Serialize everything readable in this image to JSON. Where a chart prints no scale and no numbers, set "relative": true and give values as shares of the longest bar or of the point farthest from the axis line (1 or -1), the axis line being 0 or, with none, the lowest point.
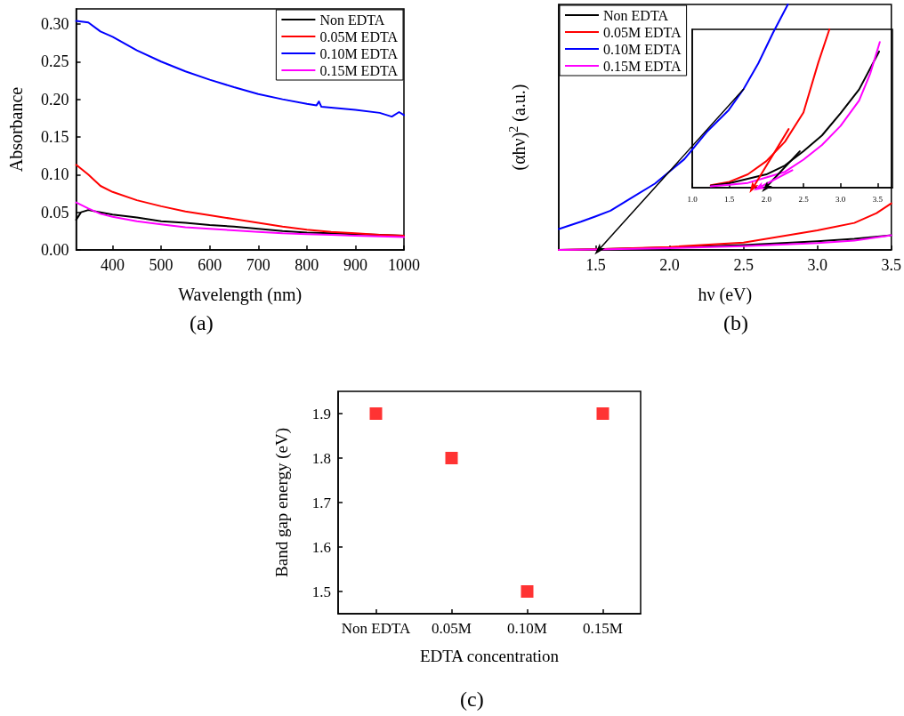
{
  "chart_data": [
    {
      "type": "line",
      "xlabel": "Wavelength (nm)",
      "ylabel": "Absorbance",
      "annotations": [
        "(a)"
      ],
      "legend": "top right",
      "xlim": [
        325,
        1000
      ],
      "xticks": [
        400,
        500,
        600,
        700,
        800,
        900,
        1000
      ],
      "ylim": [
        0,
        0.32
      ],
      "yticks": [
        {
          "value": 0,
          "label": "0.00"
        },
        {
          "value": 0.05,
          "label": "0.05"
        },
        {
          "value": 0.1,
          "label": "0.10"
        },
        {
          "value": 0.15,
          "label": "0.15"
        },
        {
          "value": 0.2,
          "label": "0.20"
        },
        {
          "value": 0.25,
          "label": "0.25"
        },
        {
          "value": 0.3,
          "label": "0.30"
        }
      ],
      "series": [
        {
          "name": "Non EDTA",
          "color": "#000000",
          "x": [
            325,
            335,
            350,
            375,
            400,
            450,
            500,
            550,
            600,
            650,
            700,
            750,
            800,
            850,
            900,
            950,
            1000
          ],
          "values": [
            0.04,
            0.05,
            0.053,
            0.05,
            0.047,
            0.043,
            0.038,
            0.036,
            0.033,
            0.031,
            0.028,
            0.025,
            0.023,
            0.022,
            0.021,
            0.02,
            0.019
          ]
        },
        {
          "name": "0.05M EDTA",
          "color": "#ff0000",
          "x": [
            325,
            350,
            375,
            400,
            450,
            500,
            550,
            600,
            650,
            700,
            750,
            800,
            850,
            900,
            950,
            1000
          ],
          "values": [
            0.113,
            0.1,
            0.085,
            0.077,
            0.066,
            0.058,
            0.051,
            0.046,
            0.041,
            0.036,
            0.031,
            0.027,
            0.024,
            0.022,
            0.02,
            0.019
          ]
        },
        {
          "name": "0.10M EDTA",
          "color": "#0000ff",
          "x": [
            325,
            350,
            375,
            400,
            450,
            500,
            550,
            600,
            650,
            700,
            750,
            800,
            820,
            825,
            830,
            850,
            900,
            950,
            975,
            990,
            1000
          ],
          "values": [
            0.304,
            0.302,
            0.29,
            0.283,
            0.265,
            0.25,
            0.237,
            0.226,
            0.216,
            0.207,
            0.2,
            0.194,
            0.192,
            0.197,
            0.19,
            0.189,
            0.186,
            0.182,
            0.177,
            0.183,
            0.179
          ]
        },
        {
          "name": "0.15M EDTA",
          "color": "#ff00ff",
          "x": [
            325,
            350,
            375,
            400,
            450,
            500,
            550,
            600,
            650,
            700,
            750,
            800,
            850,
            900,
            950,
            1000
          ],
          "values": [
            0.063,
            0.055,
            0.048,
            0.044,
            0.038,
            0.034,
            0.03,
            0.028,
            0.026,
            0.024,
            0.022,
            0.021,
            0.02,
            0.019,
            0.018,
            0.017
          ]
        }
      ]
    },
    {
      "type": "line",
      "xlabel": "hν (eV)",
      "ylabel": "(αhν)$^{2}$ (a.u.)",
      "annotations": [
        "(b)"
      ],
      "legend": "top left",
      "relative": true,
      "xlim": [
        1.25,
        3.5
      ],
      "xticks": [
        {
          "value": 1.5,
          "label": "1.5"
        },
        {
          "value": 2,
          "label": "2.0"
        },
        {
          "value": 2.5,
          "label": "2.5"
        },
        {
          "value": 3,
          "label": "3.0"
        },
        {
          "value": 3.5,
          "label": "3.5"
        }
      ],
      "series": [
        {
          "name": "Non EDTA",
          "color": "#000000",
          "x": [
            1.25,
            1.5,
            2,
            2.5,
            3,
            3.25,
            3.5
          ],
          "values": [
            0,
            0.003,
            0.01,
            0.02,
            0.035,
            0.045,
            0.06
          ]
        },
        {
          "name": "0.05M EDTA",
          "color": "#ff0000",
          "x": [
            1.25,
            1.5,
            2,
            2.5,
            3,
            3.25,
            3.4,
            3.5
          ],
          "values": [
            0,
            0.003,
            0.012,
            0.03,
            0.08,
            0.11,
            0.15,
            0.19
          ]
        },
        {
          "name": "0.10M EDTA",
          "color": "#0000ff",
          "x": [
            1.25,
            1.3,
            1.4,
            1.5,
            1.6,
            1.75,
            1.9,
            2,
            2.1,
            2.25,
            2.4,
            2.5,
            2.6,
            2.7,
            2.8
          ],
          "values": [
            0.085,
            0.095,
            0.115,
            0.137,
            0.16,
            0.215,
            0.27,
            0.32,
            0.37,
            0.48,
            0.57,
            0.655,
            0.76,
            0.885,
            1.0
          ]
        },
        {
          "name": "0.15M EDTA",
          "color": "#ff00ff",
          "x": [
            1.25,
            1.5,
            2,
            2.5,
            3,
            3.25,
            3.5
          ],
          "values": [
            0,
            0.002,
            0.007,
            0.015,
            0.028,
            0.038,
            0.06
          ]
        },
        {
          "color": "#000000",
          "x": [
            1.52,
            2.5
          ],
          "values": [
            0,
            0.655
          ]
        }
      ]
    },
    {
      "type": "line",
      "relative": true,
      "xlim": [
        1.0,
        3.7
      ],
      "xticks": [
        {
          "value": 1,
          "label": "1.0"
        },
        {
          "value": 1.5,
          "label": "1.5"
        },
        {
          "value": 2,
          "label": "2.0"
        },
        {
          "value": 2.5,
          "label": "2.5"
        },
        {
          "value": 3,
          "label": "3.0"
        },
        {
          "value": 3.5,
          "label": "3.5"
        }
      ],
      "series": [
        {
          "color": "#ff0000",
          "x": [
            1.25,
            1.5,
            1.75,
            2,
            2.25,
            2.5,
            2.7,
            2.85
          ],
          "values": [
            0.015,
            0.037,
            0.084,
            0.168,
            0.29,
            0.475,
            0.79,
            1.0
          ]
        },
        {
          "color": "#000000",
          "x": [
            1.25,
            1.5,
            2,
            2.25,
            2.5,
            2.75,
            3,
            3.25,
            3.52
          ],
          "values": [
            0.012,
            0.028,
            0.084,
            0.14,
            0.23,
            0.33,
            0.47,
            0.62,
            0.86
          ]
        },
        {
          "color": "#ff00ff",
          "x": [
            1.25,
            1.5,
            1.75,
            2,
            2.25,
            2.5,
            2.75,
            3,
            3.25,
            3.4,
            3.53
          ],
          "values": [
            0.008,
            0.018,
            0.03,
            0.065,
            0.1,
            0.177,
            0.27,
            0.39,
            0.55,
            0.72,
            0.92
          ]
        },
        {
          "color": "#ff0000",
          "x": [
            1.82,
            2.3
          ],
          "values": [
            0,
            0.37
          ]
        },
        {
          "color": "#000000",
          "x": [
            1.99,
            2.45
          ],
          "values": [
            0,
            0.23
          ]
        },
        {
          "color": "#ff00ff",
          "x": [
            1.9,
            2.35
          ],
          "values": [
            0,
            0.11
          ]
        }
      ]
    },
    {
      "type": "scatter",
      "xlabel": "EDTA concentration",
      "ylabel": "Band gap energy (eV)",
      "annotations": [
        "(c)"
      ],
      "marker": "square",
      "categories": [
        "Non EDTA",
        "0.05M",
        "0.10M",
        "0.15M"
      ],
      "ylim": [
        1.45,
        1.95
      ],
      "yticks": [
        1.5,
        1.6,
        1.7,
        1.8,
        1.9
      ],
      "series": [
        {
          "color": "#ff0000",
          "values": [
            1.9,
            1.8,
            1.5,
            1.9
          ]
        }
      ]
    }
  ]
}
